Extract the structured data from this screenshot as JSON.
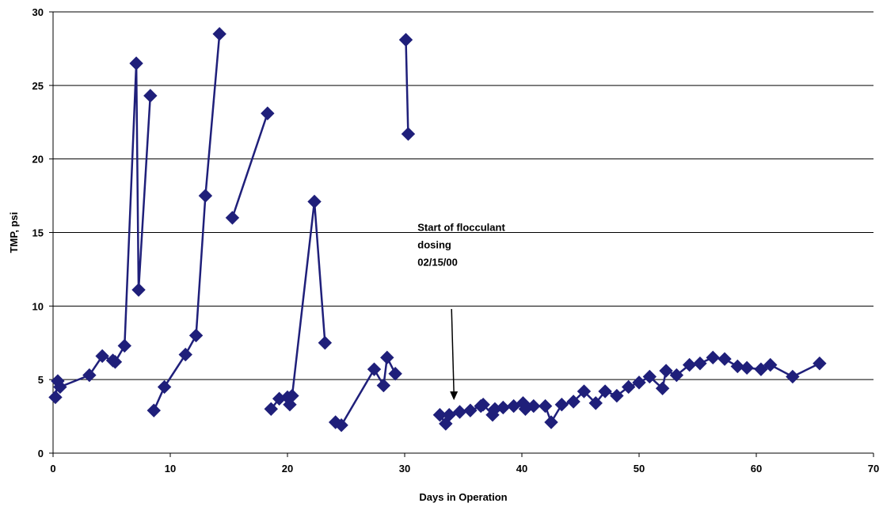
{
  "chart_data": {
    "type": "scatter",
    "title": "",
    "xlabel": "Days in Operation",
    "ylabel": "TMP, psi",
    "xlim": [
      0,
      70
    ],
    "ylim": [
      0,
      30
    ],
    "x_ticks": [
      0,
      10,
      20,
      30,
      40,
      50,
      60,
      70
    ],
    "y_ticks": [
      0,
      5,
      10,
      15,
      20,
      25,
      30
    ],
    "grid": "horizontal",
    "legend": "none",
    "series_color": "#1F1F7A",
    "marker": "diamond",
    "segments": [
      [
        [
          0.2,
          3.8
        ],
        [
          0.4,
          4.9
        ],
        [
          0.6,
          4.5
        ],
        [
          3.1,
          5.3
        ],
        [
          4.2,
          6.6
        ],
        [
          5.1,
          6.3
        ],
        [
          5.3,
          6.2
        ],
        [
          6.1,
          7.3
        ],
        [
          7.1,
          26.5
        ],
        [
          7.3,
          11.1
        ],
        [
          8.3,
          24.3
        ]
      ],
      [
        [
          8.6,
          2.9
        ],
        [
          9.5,
          4.5
        ],
        [
          11.3,
          6.7
        ],
        [
          12.2,
          8.0
        ],
        [
          13.0,
          17.5
        ],
        [
          14.2,
          28.5
        ]
      ],
      [
        [
          15.3,
          16.0
        ],
        [
          18.3,
          23.1
        ]
      ],
      [
        [
          18.6,
          3.0
        ],
        [
          19.3,
          3.7
        ],
        [
          20.0,
          3.8
        ],
        [
          20.2,
          3.3
        ],
        [
          20.4,
          3.9
        ],
        [
          22.3,
          17.1
        ],
        [
          23.2,
          7.5
        ]
      ],
      [
        [
          24.1,
          2.1
        ],
        [
          24.6,
          1.9
        ],
        [
          27.4,
          5.7
        ],
        [
          28.2,
          4.6
        ],
        [
          28.5,
          6.5
        ],
        [
          29.2,
          5.4
        ]
      ],
      [
        [
          30.1,
          28.1
        ],
        [
          30.3,
          21.7
        ]
      ],
      [
        [
          33.0,
          2.6
        ],
        [
          33.5,
          2.0
        ],
        [
          33.8,
          2.6
        ],
        [
          34.7,
          2.8
        ],
        [
          35.6,
          2.9
        ],
        [
          36.5,
          3.2
        ],
        [
          36.7,
          3.3
        ],
        [
          37.5,
          2.6
        ],
        [
          37.7,
          3.0
        ],
        [
          38.4,
          3.1
        ],
        [
          39.3,
          3.2
        ],
        [
          40.1,
          3.4
        ],
        [
          40.3,
          3.0
        ],
        [
          41.0,
          3.2
        ],
        [
          42.0,
          3.2
        ],
        [
          42.5,
          2.1
        ],
        [
          43.4,
          3.3
        ],
        [
          44.4,
          3.5
        ],
        [
          45.3,
          4.2
        ],
        [
          46.3,
          3.4
        ],
        [
          47.1,
          4.2
        ],
        [
          48.1,
          3.9
        ],
        [
          49.1,
          4.5
        ],
        [
          50.0,
          4.8
        ],
        [
          50.9,
          5.2
        ],
        [
          52.0,
          4.4
        ],
        [
          52.3,
          5.6
        ],
        [
          53.2,
          5.3
        ],
        [
          54.3,
          6.0
        ],
        [
          55.2,
          6.1
        ],
        [
          56.3,
          6.5
        ],
        [
          57.3,
          6.4
        ],
        [
          58.4,
          5.9
        ],
        [
          59.2,
          5.8
        ],
        [
          60.4,
          5.7
        ],
        [
          61.2,
          6.0
        ],
        [
          63.1,
          5.2
        ],
        [
          65.4,
          6.1
        ]
      ]
    ],
    "annotation": {
      "lines": [
        "Start of flocculant",
        "dosing",
        "02/15/00"
      ],
      "arrow_from": [
        34.0,
        9.8
      ],
      "arrow_to": [
        34.2,
        3.6
      ]
    }
  }
}
